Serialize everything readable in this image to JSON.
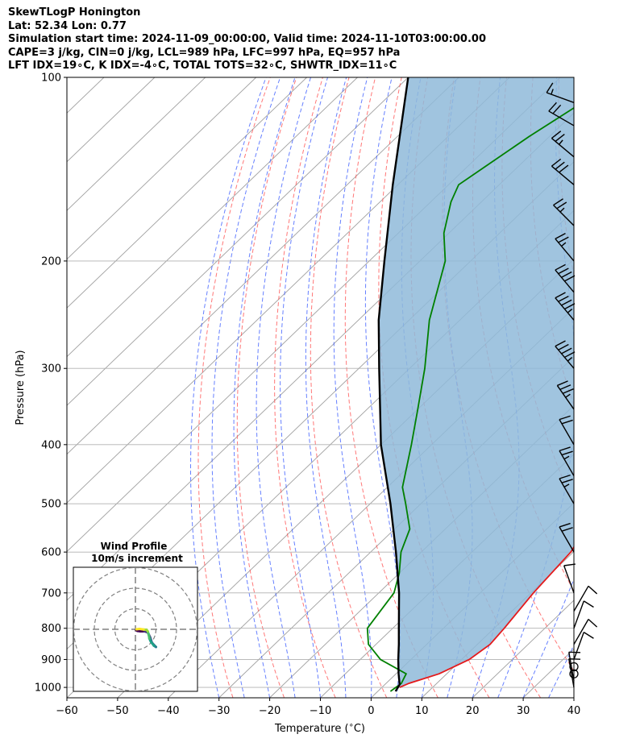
{
  "header": {
    "line1": "SkewTLogP Honington",
    "line2": "Lat: 52.34   Lon: 0.77",
    "line3": "Simulation start time: 2024-11-09_00:00:00, Valid time: 2024-11-10T03:00:00.00",
    "line4": "CAPE=3 j/kg, CIN=0 j/kg, LCL=989 hPa, LFC=997 hPa, EQ=957 hPa",
    "line5": "LFT IDX=19∘C, K IDX=-4∘C, TOTAL TOTS=32∘C, SHWTR_IDX=11∘C"
  },
  "colors": {
    "temperature": "#e41a1c",
    "dewpoint": "#008000",
    "parcel": "#000000",
    "cape_fill": "#8fbad9",
    "dry_adiabat": "#ff5555",
    "moist_adiabat": "#3355ff",
    "isotherm": "#a0a0a0",
    "hodo_grid": "#808080"
  },
  "chart_data": {
    "type": "skew-t",
    "xlabel": "Temperature ($^\\circ$C)",
    "ylabel": "Pressure (hPa)",
    "xlim": [
      -60,
      40
    ],
    "ylim": [
      1040,
      100
    ],
    "yscale": "log",
    "x_ticks": [
      "−60",
      "−50",
      "−40",
      "−30",
      "−20",
      "−10",
      "0",
      "10",
      "20",
      "30",
      "40"
    ],
    "x_tick_values": [
      -60,
      -50,
      -40,
      -30,
      -20,
      -10,
      0,
      10,
      20,
      30,
      40
    ],
    "y_ticks": [
      "100",
      "200",
      "300",
      "400",
      "500",
      "600",
      "700",
      "800",
      "900",
      "1000"
    ],
    "y_tick_values": [
      100,
      200,
      300,
      400,
      500,
      600,
      700,
      800,
      900,
      1000
    ],
    "grid": true,
    "series": [
      {
        "role": "temperature",
        "profile": [
          [
            1000,
            3.5
          ],
          [
            985,
            4.5
          ],
          [
            950,
            8.5
          ],
          [
            900,
            11.5
          ],
          [
            850,
            12.5
          ],
          [
            800,
            12.0
          ],
          [
            700,
            10.5
          ],
          [
            600,
            9.5
          ],
          [
            500,
            5.5
          ],
          [
            400,
            -2.0
          ],
          [
            300,
            -13.0
          ],
          [
            250,
            -20.0
          ],
          [
            220,
            -24.5
          ],
          [
            205,
            -26.5
          ],
          [
            180,
            -26.5
          ],
          [
            150,
            -29.0
          ],
          [
            125,
            -32.5
          ],
          [
            100,
            -39.0
          ]
        ]
      },
      {
        "role": "dewpoint",
        "profile": [
          [
            1015,
            2.5
          ],
          [
            985,
            3.0
          ],
          [
            950,
            2.0
          ],
          [
            900,
            -6.0
          ],
          [
            850,
            -11.5
          ],
          [
            800,
            -15.0
          ],
          [
            700,
            -17.0
          ],
          [
            650,
            -20.0
          ],
          [
            600,
            -24.0
          ],
          [
            550,
            -27.0
          ],
          [
            500,
            -33.0
          ],
          [
            470,
            -37.0
          ],
          [
            400,
            -44.0
          ],
          [
            350,
            -50.0
          ],
          [
            300,
            -57.0
          ],
          [
            250,
            -66.0
          ],
          [
            200,
            -75.0
          ],
          [
            180,
            -81.0
          ],
          [
            160,
            -86.0
          ],
          [
            150,
            -88.0
          ],
          [
            140,
            -86.5
          ],
          [
            125,
            -84.0
          ],
          [
            110,
            -80.5
          ],
          [
            100,
            -78.0
          ]
        ]
      },
      {
        "role": "parcel",
        "profile": [
          [
            1015,
            3.5
          ],
          [
            989,
            2.9
          ],
          [
            950,
            0.5
          ],
          [
            900,
            -2.5
          ],
          [
            850,
            -5.5
          ],
          [
            800,
            -8.8
          ],
          [
            700,
            -16.0
          ],
          [
            600,
            -25.0
          ],
          [
            500,
            -36.0
          ],
          [
            400,
            -50.0
          ],
          [
            300,
            -66.0
          ],
          [
            250,
            -76.0
          ],
          [
            200,
            -87.0
          ],
          [
            150,
            -101.0
          ],
          [
            100,
            -120.0
          ]
        ]
      }
    ],
    "wind_barbs": [
      {
        "p": 1000,
        "speed": 10,
        "dir": 350
      },
      {
        "p": 975,
        "speed": 10,
        "dir": 350
      },
      {
        "p": 950,
        "speed": 0,
        "dir": 0
      },
      {
        "p": 925,
        "speed": 0,
        "dir": 0
      },
      {
        "p": 900,
        "speed": 10,
        "dir": 20
      },
      {
        "p": 850,
        "speed": 10,
        "dir": 30
      },
      {
        "p": 800,
        "speed": 10,
        "dir": 20
      },
      {
        "p": 750,
        "speed": 10,
        "dir": 30
      },
      {
        "p": 700,
        "speed": 10,
        "dir": 340
      },
      {
        "p": 600,
        "speed": 20,
        "dir": 330
      },
      {
        "p": 500,
        "speed": 25,
        "dir": 330
      },
      {
        "p": 450,
        "speed": 25,
        "dir": 330
      },
      {
        "p": 400,
        "speed": 20,
        "dir": 330
      },
      {
        "p": 350,
        "speed": 35,
        "dir": 325
      },
      {
        "p": 300,
        "speed": 45,
        "dir": 320
      },
      {
        "p": 250,
        "speed": 45,
        "dir": 320
      },
      {
        "p": 225,
        "speed": 40,
        "dir": 320
      },
      {
        "p": 200,
        "speed": 25,
        "dir": 320
      },
      {
        "p": 175,
        "speed": 25,
        "dir": 315
      },
      {
        "p": 150,
        "speed": 30,
        "dir": 310
      },
      {
        "p": 135,
        "speed": 25,
        "dir": 310
      },
      {
        "p": 120,
        "speed": 20,
        "dir": 300
      },
      {
        "p": 110,
        "speed": 15,
        "dir": 290
      }
    ],
    "hodograph": {
      "title": "Wind Profile",
      "subtitle": "10m/s increment",
      "ring_increment": 10,
      "rings": 3,
      "points_uv": [
        [
          0.3,
          -0.3
        ],
        [
          1.0,
          -0.8
        ],
        [
          2.5,
          -1.0
        ],
        [
          4.5,
          -1.0
        ],
        [
          6.0,
          -1.5
        ],
        [
          7.2,
          -4.0
        ],
        [
          8.0,
          -6.5
        ],
        [
          9.2,
          -7.8
        ],
        [
          10.0,
          -8.6
        ],
        [
          9.0,
          -8.0
        ],
        [
          7.5,
          -6.0
        ],
        [
          6.8,
          -4.5
        ],
        [
          6.5,
          -2.8
        ],
        [
          6.0,
          -1.0
        ],
        [
          5.5,
          -0.3
        ],
        [
          4.0,
          -0.1
        ],
        [
          2.0,
          0.2
        ],
        [
          0.5,
          0.0
        ]
      ],
      "point_colors": [
        "#440154",
        "#46337e",
        "#365c8d",
        "#277f8e",
        "#1fa187",
        "#4ac16d",
        "#9fda3a",
        "#fde725"
      ]
    }
  }
}
